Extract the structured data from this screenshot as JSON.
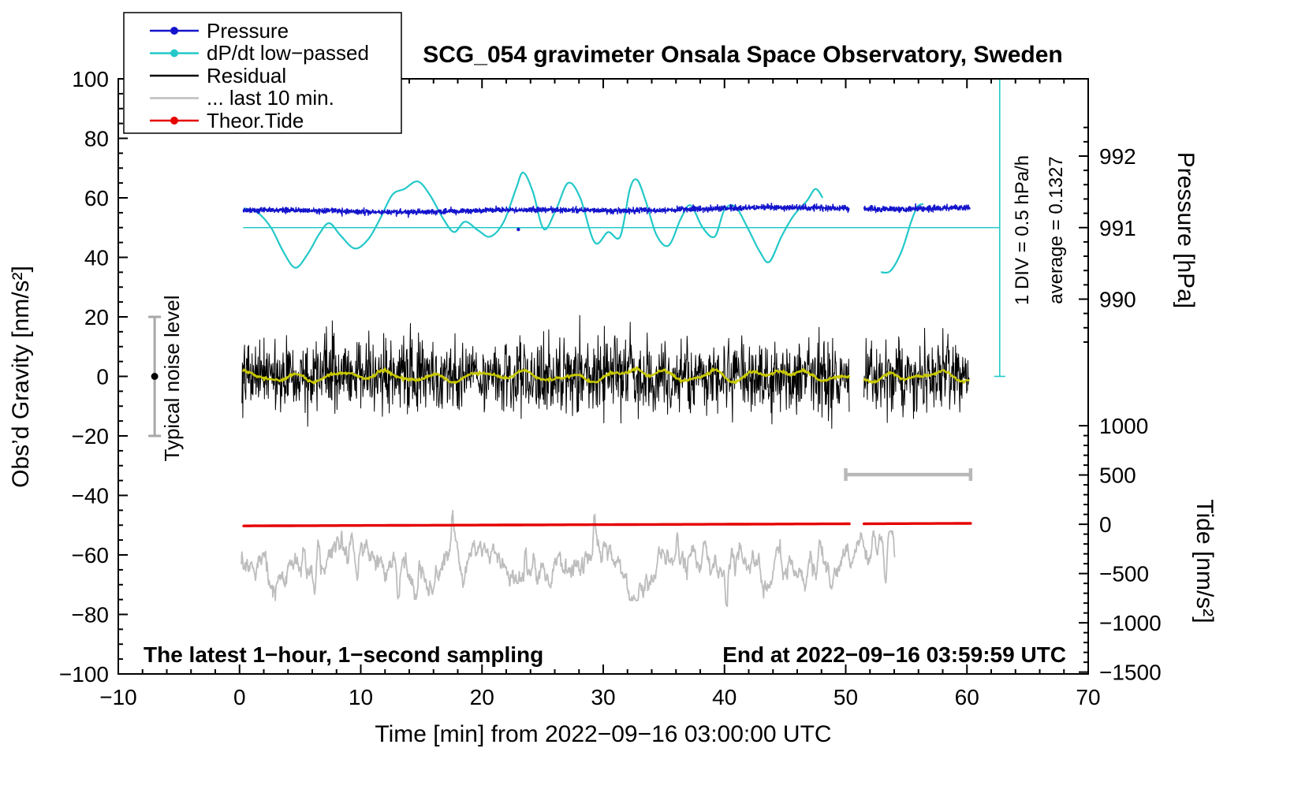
{
  "title": "SCG_054 gravimeter Onsala Space Observatory, Sweden",
  "legend": {
    "items": [
      {
        "label": "Pressure",
        "color": "#1414cc",
        "marker": "dot"
      },
      {
        "label": "dP/dt low−passed",
        "color": "#23c8c8",
        "marker": "dot"
      },
      {
        "label": "Residual",
        "color": "#000000",
        "marker": "none"
      },
      {
        "label": "... last 10 min.",
        "color": "#bdbdbd",
        "marker": "none"
      },
      {
        "label": "Theor.Tide",
        "color": "#e60000",
        "marker": "dot"
      }
    ]
  },
  "axes": {
    "x": {
      "label": "Time [min] from 2022−09−16 03:00:00 UTC",
      "min": -10,
      "max": 70,
      "ticks": [
        -10,
        0,
        10,
        20,
        30,
        40,
        50,
        60,
        70
      ],
      "minor_step": 2
    },
    "y_left": {
      "label": "Obs’d Gravity [nm/s²]",
      "min": -100,
      "max": 100,
      "ticks": [
        -100,
        -80,
        -60,
        -40,
        -20,
        0,
        20,
        40,
        60,
        80,
        100
      ],
      "minor_step": 5
    },
    "y_pressure": {
      "label": "Pressure [hPa]",
      "ticks": [
        990,
        991,
        992
      ],
      "gravity_per_hPa": 24.04,
      "gravity_at_991": 50
    },
    "y_tide": {
      "label": "Tide [nm/s²]",
      "ticks": [
        -1500,
        -1000,
        -500,
        0,
        500,
        1000
      ],
      "gravity_at_0": -49.7,
      "gravity_per_500": 16.56
    }
  },
  "annotations": {
    "div_scale": "1 DIV = 0.5 hPa/h",
    "average": "average = 0.1327",
    "noise_label": "Typical noise level",
    "sampling_note": "The latest 1−hour, 1−second sampling",
    "end_note": "End at 2022−09−16 03:59:59 UTC"
  },
  "chart_data": {
    "type": "line",
    "x_range": [
      -10,
      70
    ],
    "y_left_range": [
      -100,
      100
    ],
    "data_window_min": [
      0,
      60.3
    ],
    "gap_min": [
      50.3,
      51.5
    ],
    "pressure": {
      "units": "hPa",
      "mean_hPa": 991.25,
      "gravity_baseline": 55.35,
      "trend_per_min": 0.021,
      "noise_amp": 0.45,
      "outlier_point": [
        23.0,
        49.4
      ]
    },
    "dpdt": {
      "reference_level_gravity": 50,
      "average_hPa_per_h": 0.1327,
      "keypoints_main": [
        [
          0.4,
          56.5
        ],
        [
          1.5,
          55
        ],
        [
          2.6,
          50
        ],
        [
          3.6,
          42
        ],
        [
          4.6,
          36.5
        ],
        [
          5.6,
          41
        ],
        [
          6.6,
          48
        ],
        [
          7.4,
          51.5
        ],
        [
          8.3,
          47.5
        ],
        [
          9.5,
          43
        ],
        [
          10.6,
          46
        ],
        [
          11.6,
          53
        ],
        [
          12.6,
          61
        ],
        [
          13.6,
          63
        ],
        [
          14.7,
          65.5
        ],
        [
          15.7,
          61
        ],
        [
          16.8,
          53
        ],
        [
          17.7,
          48.5
        ],
        [
          18.6,
          52
        ],
        [
          19.7,
          49
        ],
        [
          20.7,
          47
        ],
        [
          21.8,
          52
        ],
        [
          22.8,
          63
        ],
        [
          23.4,
          68.5
        ],
        [
          24.2,
          62
        ],
        [
          25.1,
          49.5
        ],
        [
          26.1,
          56
        ],
        [
          27.1,
          65
        ],
        [
          28.1,
          60
        ],
        [
          29.3,
          45
        ],
        [
          30.4,
          48.5
        ],
        [
          31.4,
          47
        ],
        [
          32.2,
          63
        ],
        [
          32.8,
          66
        ],
        [
          33.5,
          59
        ],
        [
          34.4,
          47.5
        ],
        [
          35.4,
          44
        ],
        [
          36.4,
          53
        ],
        [
          37.2,
          57.5
        ],
        [
          38.2,
          50
        ],
        [
          39.2,
          47
        ],
        [
          40,
          56
        ],
        [
          40.9,
          57
        ],
        [
          41.9,
          50
        ],
        [
          42.9,
          42
        ],
        [
          43.7,
          38.5
        ],
        [
          44.7,
          47
        ],
        [
          45.7,
          54
        ],
        [
          46.8,
          59
        ],
        [
          47.5,
          63
        ],
        [
          48.1,
          60
        ]
      ],
      "keypoints_tail": [
        [
          52.9,
          35
        ],
        [
          53.7,
          35.5
        ],
        [
          54.6,
          42
        ],
        [
          55.4,
          52
        ],
        [
          55.9,
          57
        ],
        [
          56.4,
          58
        ]
      ]
    },
    "residual": {
      "mean": 0,
      "std": 6,
      "clip": 20.5,
      "envelope_center": 31,
      "envelope_gain": 0.18
    },
    "residual_smoothed": {
      "color": "#c8c800",
      "bumps": [
        [
          32.8,
          2.4
        ],
        [
          39.2,
          2.0
        ],
        [
          44.6,
          1.8
        ],
        [
          54.5,
          -1.5
        ]
      ]
    },
    "tide": {
      "start_gravity": -50.25,
      "end_gravity": -49.4
    },
    "last10": {
      "center_gravity": -63.3,
      "x_start": 0.15,
      "x_end": 54.05,
      "spikes": [
        [
          6.5,
          11
        ],
        [
          13.1,
          -12.5
        ],
        [
          14.6,
          -11
        ],
        [
          17.6,
          11
        ],
        [
          23.6,
          10.5
        ],
        [
          29.3,
          9
        ],
        [
          36.1,
          10.8
        ],
        [
          40.2,
          -10
        ],
        [
          47.9,
          9
        ],
        [
          53.3,
          -17.5
        ]
      ]
    },
    "window_bar": {
      "x": [
        50,
        60.3
      ],
      "gravity": -33
    },
    "noise_bar": {
      "x": -7,
      "gravity": [
        -20,
        20
      ],
      "dot_gravity": 0
    },
    "scale_bar": {
      "x": 62.7,
      "gravity": [
        0,
        100
      ]
    }
  }
}
